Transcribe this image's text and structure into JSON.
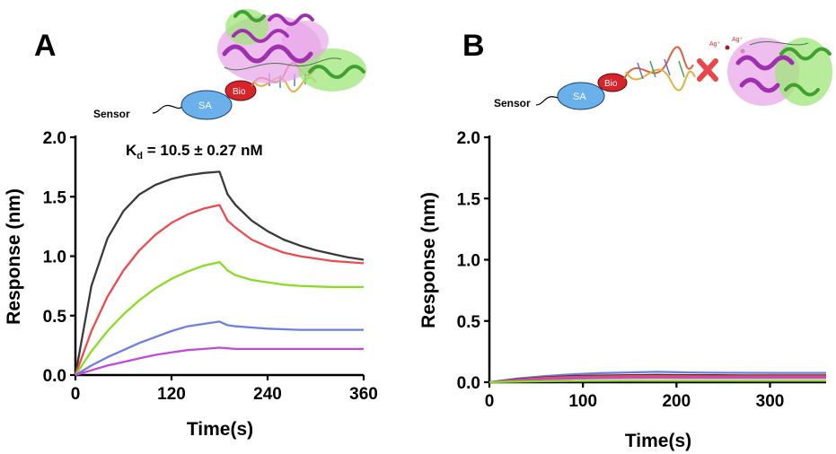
{
  "colors": {
    "black": "#3a3a3a",
    "red": "#ee4a50",
    "green": "#88dd22",
    "blue": "#6f7fe0",
    "magenta": "#c24ad8",
    "sa_fill": "#6ab0ea",
    "bio_fill": "#d6242a",
    "x_mark": "#e8464a",
    "protein_pink": "#e8a8e8",
    "protein_green": "#9fe67a"
  },
  "schematics": {
    "A": {
      "sensor_label": "Sensor",
      "sa_label": "SA",
      "bio_label": "Bio"
    },
    "B": {
      "sensor_label": "Sensor",
      "sa_label": "SA",
      "bio_label": "Bio",
      "ag_label_1": "Ag⁺",
      "ag_label_2": "Ag⁺"
    }
  },
  "chart_data": [
    {
      "panel": "A",
      "type": "line",
      "annotation": {
        "prefix": "K",
        "subscript": "d",
        "text": " = 10.5 ± 0.27 nM"
      },
      "xlabel": "Time(s)",
      "ylabel": "Response (nm)",
      "xlim": [
        0,
        360
      ],
      "ylim": [
        0,
        2.0
      ],
      "xticks": [
        0,
        120,
        240,
        360
      ],
      "yticks": [
        0.0,
        0.5,
        1.0,
        1.5,
        2.0
      ],
      "ytick_labels": [
        "0.0",
        "0.5",
        "1.0",
        "1.5",
        "2.0"
      ],
      "grid": false,
      "association_end": 180,
      "series": [
        {
          "color_key": "black",
          "x": [
            0,
            20,
            40,
            60,
            80,
            100,
            120,
            140,
            160,
            180,
            190,
            200,
            220,
            240,
            260,
            280,
            300,
            320,
            340,
            360
          ],
          "values": [
            0,
            0.75,
            1.15,
            1.38,
            1.52,
            1.6,
            1.65,
            1.68,
            1.7,
            1.71,
            1.52,
            1.43,
            1.3,
            1.21,
            1.14,
            1.09,
            1.05,
            1.02,
            0.99,
            0.97
          ]
        },
        {
          "color_key": "red",
          "x": [
            0,
            20,
            40,
            60,
            80,
            100,
            120,
            140,
            160,
            180,
            190,
            200,
            220,
            240,
            260,
            280,
            300,
            320,
            340,
            360
          ],
          "values": [
            0,
            0.37,
            0.66,
            0.88,
            1.05,
            1.18,
            1.28,
            1.35,
            1.4,
            1.43,
            1.3,
            1.24,
            1.14,
            1.08,
            1.03,
            1.0,
            0.98,
            0.96,
            0.95,
            0.94
          ]
        },
        {
          "color_key": "green",
          "x": [
            0,
            20,
            40,
            60,
            80,
            100,
            120,
            140,
            160,
            180,
            190,
            200,
            220,
            240,
            260,
            280,
            300,
            320,
            340,
            360
          ],
          "values": [
            0,
            0.2,
            0.37,
            0.51,
            0.63,
            0.73,
            0.81,
            0.87,
            0.92,
            0.95,
            0.88,
            0.84,
            0.8,
            0.78,
            0.76,
            0.75,
            0.745,
            0.74,
            0.74,
            0.74
          ]
        },
        {
          "color_key": "blue",
          "x": [
            0,
            20,
            40,
            60,
            80,
            100,
            120,
            140,
            160,
            180,
            190,
            200,
            220,
            240,
            260,
            280,
            300,
            320,
            340,
            360
          ],
          "values": [
            0,
            0.08,
            0.15,
            0.21,
            0.27,
            0.32,
            0.37,
            0.41,
            0.43,
            0.45,
            0.42,
            0.41,
            0.4,
            0.39,
            0.385,
            0.38,
            0.38,
            0.38,
            0.38,
            0.38
          ]
        },
        {
          "color_key": "magenta",
          "x": [
            0,
            20,
            40,
            60,
            80,
            100,
            120,
            140,
            160,
            180,
            190,
            200,
            220,
            240,
            260,
            280,
            300,
            320,
            340,
            360
          ],
          "values": [
            0,
            0.04,
            0.08,
            0.11,
            0.14,
            0.17,
            0.19,
            0.21,
            0.22,
            0.23,
            0.225,
            0.22,
            0.22,
            0.22,
            0.22,
            0.22,
            0.22,
            0.22,
            0.22,
            0.22
          ]
        }
      ]
    },
    {
      "panel": "B",
      "type": "line",
      "xlabel": "Time(s)",
      "ylabel": "Response (nm)",
      "xlim": [
        0,
        360
      ],
      "ylim": [
        0,
        2.0
      ],
      "xticks": [
        0,
        100,
        200,
        300
      ],
      "yticks": [
        0.0,
        0.5,
        1.0,
        1.5,
        2.0
      ],
      "ytick_labels": [
        "0.0",
        "0.5",
        "1.0",
        "1.5",
        "2.0"
      ],
      "grid": false,
      "series": [
        {
          "color_key": "blue",
          "x": [
            0,
            30,
            60,
            90,
            120,
            150,
            180,
            210,
            240,
            270,
            300,
            330,
            360
          ],
          "values": [
            0,
            0.03,
            0.05,
            0.065,
            0.075,
            0.08,
            0.085,
            0.08,
            0.078,
            0.077,
            0.076,
            0.076,
            0.076
          ]
        },
        {
          "color_key": "black",
          "x": [
            0,
            30,
            60,
            90,
            120,
            150,
            180,
            210,
            240,
            270,
            300,
            330,
            360
          ],
          "values": [
            0,
            0.025,
            0.04,
            0.05,
            0.055,
            0.058,
            0.06,
            0.058,
            0.057,
            0.056,
            0.056,
            0.056,
            0.056
          ]
        },
        {
          "color_key": "red",
          "x": [
            0,
            30,
            60,
            90,
            120,
            150,
            180,
            210,
            240,
            270,
            300,
            330,
            360
          ],
          "values": [
            0,
            0.02,
            0.035,
            0.043,
            0.047,
            0.05,
            0.05,
            0.049,
            0.048,
            0.048,
            0.048,
            0.048,
            0.048
          ]
        },
        {
          "color_key": "magenta",
          "x": [
            0,
            30,
            60,
            90,
            120,
            150,
            180,
            210,
            240,
            270,
            300,
            330,
            360
          ],
          "values": [
            0,
            0.015,
            0.025,
            0.03,
            0.033,
            0.035,
            0.036,
            0.035,
            0.035,
            0.035,
            0.035,
            0.035,
            0.035
          ]
        },
        {
          "color_key": "green",
          "x": [
            0,
            30,
            60,
            90,
            120,
            150,
            180,
            210,
            240,
            270,
            300,
            330,
            360
          ],
          "values": [
            0,
            0.005,
            0.008,
            0.01,
            0.011,
            0.012,
            0.012,
            0.012,
            0.012,
            0.012,
            0.012,
            0.012,
            0.012
          ]
        }
      ]
    }
  ]
}
